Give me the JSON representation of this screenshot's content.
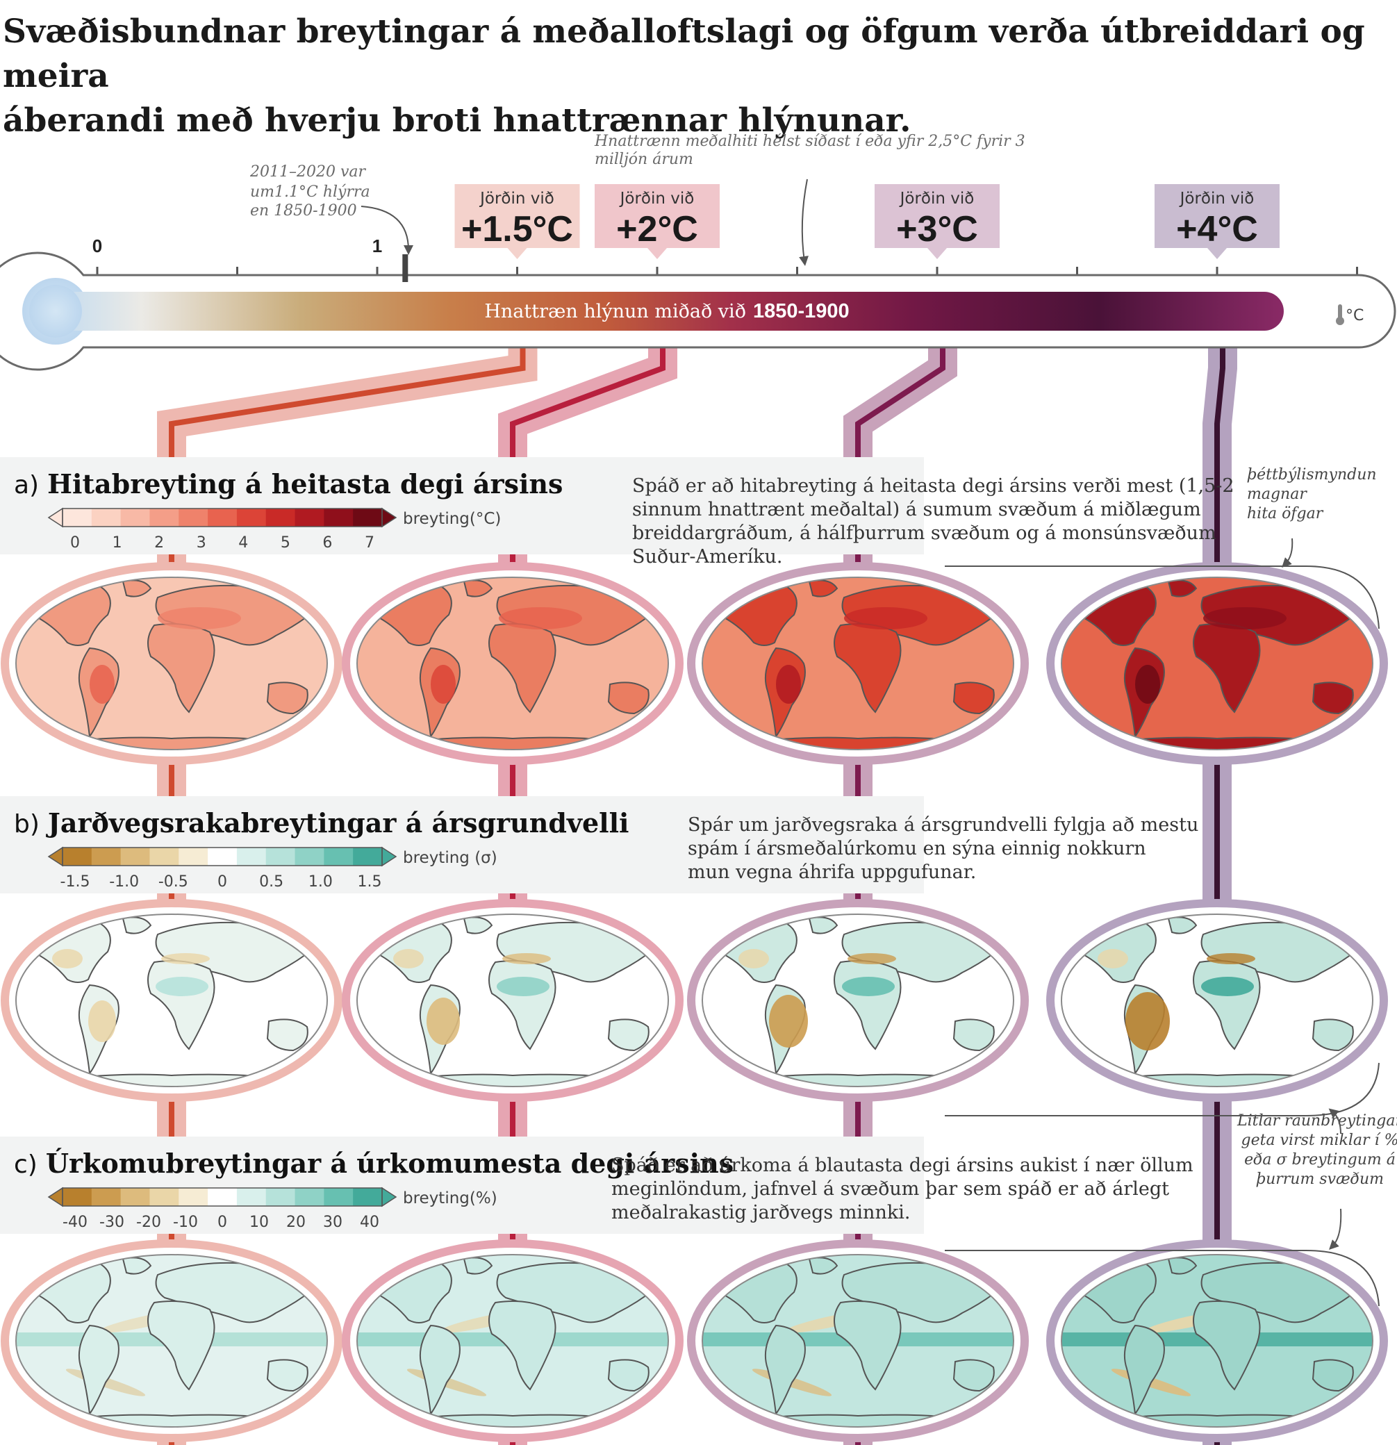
{
  "title": {
    "line1": "Svæðisbundnar breytingar á meðalloftslagi og öfgum verða útbreiddari og meira",
    "line2": "áberandi með hverju broti hnattrænnar hlýnunar."
  },
  "annotations": {
    "recent_line1": "2011–2020 var",
    "recent_line2": "um1.1°C hlýrra",
    "recent_line3": "en 1850-1900",
    "history_line1": "Hnattrænn meðalhiti hélst síðast í eða yfir 2,5°C fyrir 3",
    "history_line2": "milljón árum"
  },
  "scale": {
    "tick_labels": [
      "0",
      "1"
    ],
    "bar_label": "Hnattræn hlýnun miðað við",
    "bar_label_bold": "1850-1900",
    "unit_symbol": "°C",
    "recent_marker_value": 1.1
  },
  "levels": [
    {
      "top": "Jörðin við",
      "label": "+1.5°C",
      "value": 1.5,
      "color": "#f4d2cc",
      "line": "#cf4a2f",
      "band": "#eeb8b0"
    },
    {
      "top": "Jörðin við",
      "label": "+2°C",
      "value": 2,
      "color": "#f0c6cb",
      "line": "#b81f3d",
      "band": "#e6a5b2"
    },
    {
      "top": "Jörðin við",
      "label": "+3°C",
      "value": 3,
      "color": "#dcc3d4",
      "line": "#7d1a4e",
      "band": "#c8a2ba"
    },
    {
      "top": "Jörðin við",
      "label": "+4°C",
      "value": 4,
      "color": "#c9bcd0",
      "line": "#3a1230",
      "band": "#b4a2bf"
    }
  ],
  "panels": [
    {
      "letter": "a)",
      "title": "Hitabreyting á heitasta degi ársins",
      "desc": [
        "Spáð er að hitabreyting á heitasta degi ársins verði mest (1,5-2",
        "sinnum hnattrænt meðaltal) á sumum svæðum á miðlægum",
        "breiddargráðum, á hálfþurrum svæðum og á monsúnsvæðum",
        "Suður-Ameríku."
      ],
      "colorbar": {
        "unit": "breyting(°C)",
        "ticks": [
          "0",
          "1",
          "2",
          "3",
          "4",
          "5",
          "6",
          "7"
        ],
        "colors": [
          "#fde6dc",
          "#fbd2c2",
          "#f8b9a6",
          "#f49e88",
          "#ef826b",
          "#e8634f",
          "#dc4437",
          "#c92a27",
          "#b01a21",
          "#8f0f1b",
          "#6e0a15"
        ]
      },
      "side_note": [
        "þéttbýlismyndun",
        "magnar",
        "hita öfgar"
      ]
    },
    {
      "letter": "b)",
      "title": "Jarðvegsrakabreytingar á ársgrundvelli",
      "desc": [
        "Spár um jarðvegsraka á ársgrundvelli fylgja að mestu",
        "spám í ársmeðalúrkomu en sýna einnig nokkurn",
        "mun vegna áhrifa uppgufunar."
      ],
      "colorbar": {
        "unit": "breyting (σ)",
        "ticks": [
          "-1.5",
          "-1.0",
          "-0.5",
          "0",
          "0.5",
          "1.0",
          "1.5"
        ],
        "colors": [
          "#b8802d",
          "#cc9c50",
          "#ddbb7d",
          "#ead6a8",
          "#f6ecd4",
          "#ffffff",
          "#d9f0ec",
          "#b6e2da",
          "#8fd2c6",
          "#67c0b1",
          "#43aa9a"
        ]
      }
    },
    {
      "letter": "c)",
      "title": "Úrkomubreytingar á úrkomumesta degi ársins",
      "desc": [
        "Spáð er að úrkoma á blautasta degi ársins aukist í nær öllum",
        "meginlöndum, jafnvel á svæðum þar sem spáð er að árlegt",
        "meðalrakastig jarðvegs minnki."
      ],
      "colorbar": {
        "unit": "breyting(%)",
        "ticks": [
          "-40",
          "-30",
          "-20",
          "-10",
          "0",
          "10",
          "20",
          "30",
          "40"
        ],
        "colors": [
          "#b8802d",
          "#cc9c50",
          "#ddbb7d",
          "#ead6a8",
          "#f6ecd4",
          "#ffffff",
          "#d9f0ec",
          "#b6e2da",
          "#8fd2c6",
          "#67c0b1",
          "#43aa9a"
        ]
      },
      "side_note": [
        "Litlar raunbreytingar",
        "geta virst miklar í %",
        "eða σ breytingum á",
        "þurrum svæðum"
      ]
    }
  ]
}
